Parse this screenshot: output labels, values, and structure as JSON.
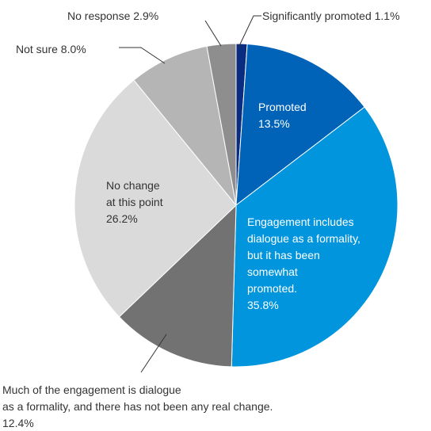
{
  "chart_data": {
    "type": "pie",
    "colors": {
      "Significantly promoted": "#0a2d80",
      "Promoted": "#0063b8",
      "Engagement includes dialogue as a formality, but it has been somewhat promoted.": "#0095dc",
      "Much of the engagement is dialogue as a formality, and there has not been any real change.": "#727272",
      "No change at this point": "#dadada",
      "Not sure": "#b5b5b5",
      "No response": "#8e8e8e"
    },
    "slices": [
      {
        "label": "Significantly promoted",
        "value": 1.1
      },
      {
        "label": "Promoted",
        "value": 13.5
      },
      {
        "label": "Engagement includes dialogue as a formality, but it has been somewhat promoted.",
        "value": 35.8
      },
      {
        "label": "Much of the engagement is dialogue as a formality, and there has not been any real change.",
        "value": 12.4
      },
      {
        "label": "No change at this point",
        "value": 26.2
      },
      {
        "label": "Not sure",
        "value": 8.0
      },
      {
        "label": "No response",
        "value": 2.9
      }
    ],
    "labels": {
      "significantly_promoted": "Significantly promoted 1.1%",
      "promoted": [
        "Promoted",
        "13.5%"
      ],
      "engagement": [
        "Engagement includes",
        "dialogue as a formality,",
        "but it has been",
        "somewhat",
        "promoted.",
        "35.8%"
      ],
      "much": [
        "Much of the engagement is dialogue",
        "as a formality, and there has not been any real change.",
        "12.4%"
      ],
      "no_change": [
        "No change",
        "at this point",
        "26.2%"
      ],
      "not_sure": "Not sure 8.0%",
      "no_response": "No response 2.9%"
    }
  }
}
